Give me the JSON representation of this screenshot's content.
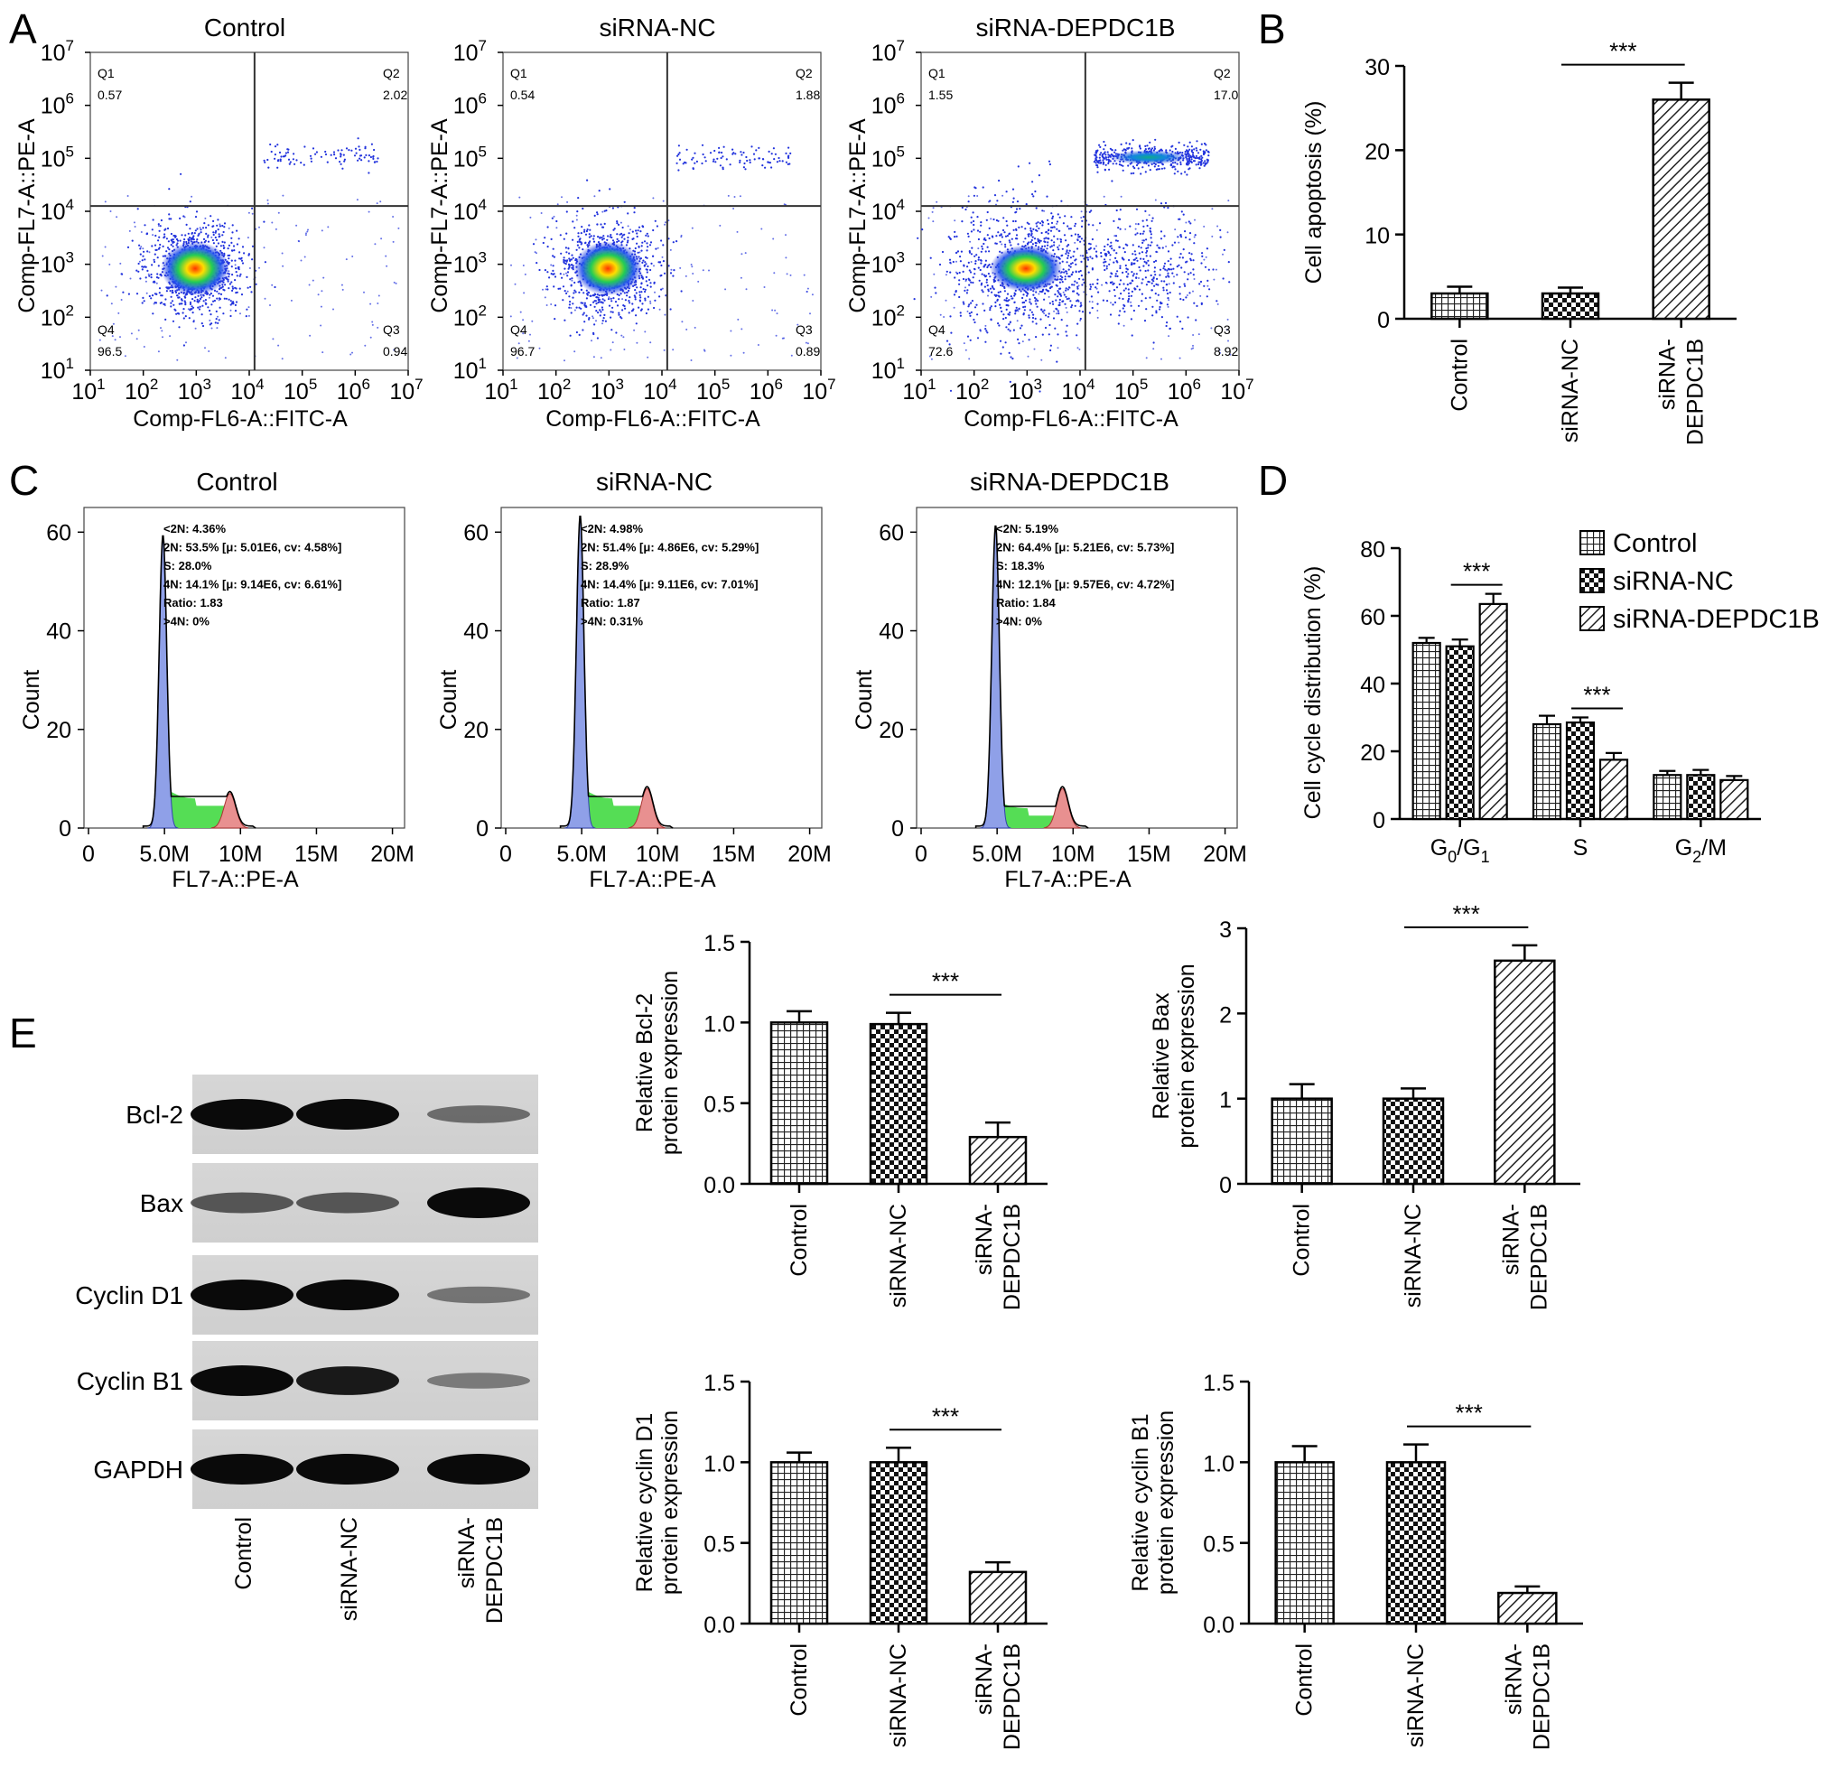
{
  "panels": {
    "A": "A",
    "B": "B",
    "C": "C",
    "D": "D",
    "E": "E"
  },
  "colors": {
    "axis": "#000000",
    "dot_low": "#2233dd",
    "dot_high": "#00cc44",
    "hist_2n": "#8fa0e8",
    "hist_s": "#55dd55",
    "hist_4n": "#e89090"
  },
  "flow": {
    "xlabel": "Comp-FL6-A::FITC-A",
    "ylabel": "Comp-FL7-A::PE-A",
    "log_ticks": [
      "1",
      "2",
      "3",
      "4",
      "5",
      "6",
      "7"
    ],
    "plots": [
      {
        "title": "Control",
        "q1_label": "Q1",
        "q1": "0.57",
        "q2_label": "Q2",
        "q2": "2.02",
        "q3_label": "Q3",
        "q3": "0.94",
        "q4_label": "Q4",
        "q4": "96.5"
      },
      {
        "title": "siRNA-NC",
        "q1_label": "Q1",
        "q1": "0.54",
        "q2_label": "Q2",
        "q2": "1.88",
        "q3_label": "Q3",
        "q3": "0.89",
        "q4_label": "Q4",
        "q4": "96.7"
      },
      {
        "title": "siRNA-DEPDC1B",
        "q1_label": "Q1",
        "q1": "1.55",
        "q2_label": "Q2",
        "q2": "17.0",
        "q3_label": "Q3",
        "q3": "8.92",
        "q4_label": "Q4",
        "q4": "72.6"
      }
    ]
  },
  "cellcycle": {
    "xlabel": "FL7-A::PE-A",
    "ylabel": "Count",
    "xticks": [
      "0",
      "5.0M",
      "10M",
      "15M",
      "20M"
    ],
    "yticks": [
      "0",
      "20",
      "40",
      "60"
    ],
    "plots": [
      {
        "title": "Control",
        "stats": [
          "<2N: 4.36%",
          "2N: 53.5%   [μ: 5.01E6, cv: 4.58%]",
          "S: 28.0%",
          "4N: 14.1%   [μ: 9.14E6, cv: 6.61%]",
          "Ratio: 1.83",
          ">4N: 0%"
        ],
        "peak": 59,
        "plateau": 6,
        "peak4n": 7
      },
      {
        "title": "siRNA-NC",
        "stats": [
          "<2N: 4.98%",
          "2N: 51.4%   [μ: 4.86E6, cv: 5.29%]",
          "S: 28.9%",
          "4N: 14.4%   [μ: 9.11E6, cv: 7.01%]",
          "Ratio: 1.87",
          ">4N: 0.31%"
        ],
        "peak": 63,
        "plateau": 6,
        "peak4n": 8
      },
      {
        "title": "siRNA-DEPDC1B",
        "stats": [
          "<2N: 5.19%",
          "2N: 64.4%   [μ: 5.21E6, cv: 5.73%]",
          "S: 18.3%",
          "4N: 12.1%   [μ: 9.57E6, cv: 4.72%]",
          "Ratio: 1.84",
          ">4N: 0%"
        ],
        "peak": 61,
        "plateau": 4,
        "peak4n": 8
      }
    ]
  },
  "blot": {
    "rows": [
      "Bcl-2",
      "Bax",
      "Cyclin D1",
      "Cyclin B1",
      "GAPDH"
    ],
    "lanes": [
      "Control",
      "siRNA-NC",
      "siRNA-\nDEPDC1B"
    ],
    "intensity": [
      [
        1.0,
        1.0,
        0.35
      ],
      [
        0.5,
        0.5,
        1.0
      ],
      [
        1.0,
        1.0,
        0.3
      ],
      [
        1.0,
        0.9,
        0.25
      ],
      [
        1.0,
        1.0,
        1.0
      ]
    ]
  },
  "chart_data": [
    {
      "id": "B",
      "type": "bar",
      "categories": [
        "Control",
        "siRNA-NC",
        "siRNA-\nDEPDC1B"
      ],
      "values": [
        3.0,
        3.0,
        26.0
      ],
      "errors": [
        0.8,
        0.7,
        2.0
      ],
      "ylabel": "Cell apoptosis (%)",
      "ylim": [
        0,
        30
      ],
      "yticks": [
        0,
        10,
        20,
        30
      ],
      "significance": [
        {
          "from": 1,
          "to": 2,
          "label": "***"
        }
      ]
    },
    {
      "id": "D",
      "type": "bar",
      "categories": [
        "G0/G1",
        "S",
        "G2/M"
      ],
      "series": [
        {
          "name": "Control",
          "values": [
            52.0,
            28.0,
            13.0
          ],
          "errors": [
            1.5,
            2.5,
            1.2
          ]
        },
        {
          "name": "siRNA-NC",
          "values": [
            51.0,
            28.5,
            13.0
          ],
          "errors": [
            2.0,
            1.5,
            1.5
          ]
        },
        {
          "name": "siRNA-DEPDC1B",
          "values": [
            63.5,
            17.5,
            11.5
          ],
          "errors": [
            3.0,
            2.0,
            1.2
          ]
        }
      ],
      "ylabel": "Cell cycle distribution (%)",
      "ylim": [
        0,
        80
      ],
      "yticks": [
        0,
        20,
        40,
        60,
        80
      ],
      "legend": "top-right",
      "significance": [
        {
          "group": 0,
          "from": 1,
          "to": 2,
          "label": "***"
        },
        {
          "group": 1,
          "from": 1,
          "to": 2,
          "label": "***"
        }
      ]
    },
    {
      "id": "E-Bcl2",
      "type": "bar",
      "categories": [
        "Control",
        "siRNA-NC",
        "siRNA-\nDEPDC1B"
      ],
      "values": [
        1.0,
        0.99,
        0.29
      ],
      "errors": [
        0.07,
        0.07,
        0.09
      ],
      "ylabel": "Relative Bcl-2\nprotein expression",
      "ylim": [
        0,
        1.5
      ],
      "yticks": [
        "0.0",
        "0.5",
        "1.0",
        "1.5"
      ],
      "significance": [
        {
          "from": 1,
          "to": 2,
          "label": "***"
        }
      ]
    },
    {
      "id": "E-Bax",
      "type": "bar",
      "categories": [
        "Control",
        "siRNA-NC",
        "siRNA-\nDEPDC1B"
      ],
      "values": [
        1.0,
        1.0,
        2.62
      ],
      "errors": [
        0.17,
        0.12,
        0.18
      ],
      "ylabel": "Relative Bax\nprotein expression",
      "ylim": [
        0,
        3
      ],
      "yticks": [
        "0",
        "1",
        "2",
        "3"
      ],
      "significance": [
        {
          "from": 1,
          "to": 2,
          "label": "***"
        }
      ]
    },
    {
      "id": "E-CyclinD1",
      "type": "bar",
      "categories": [
        "Control",
        "siRNA-NC",
        "siRNA-\nDEPDC1B"
      ],
      "values": [
        1.0,
        1.0,
        0.32
      ],
      "errors": [
        0.06,
        0.09,
        0.06
      ],
      "ylabel": "Relative cyclin D1\nprotein expression",
      "ylim": [
        0,
        1.5
      ],
      "yticks": [
        "0.0",
        "0.5",
        "1.0",
        "1.5"
      ],
      "significance": [
        {
          "from": 1,
          "to": 2,
          "label": "***"
        }
      ]
    },
    {
      "id": "E-CyclinB1",
      "type": "bar",
      "categories": [
        "Control",
        "siRNA-NC",
        "siRNA-\nDEPDC1B"
      ],
      "values": [
        1.0,
        1.0,
        0.19
      ],
      "errors": [
        0.1,
        0.11,
        0.04
      ],
      "ylabel": "Relative cyclin B1\nprotein expression",
      "ylim": [
        0,
        1.5
      ],
      "yticks": [
        "0.0",
        "0.5",
        "1.0",
        "1.5"
      ],
      "significance": [
        {
          "from": 1,
          "to": 2,
          "label": "***"
        }
      ]
    }
  ]
}
